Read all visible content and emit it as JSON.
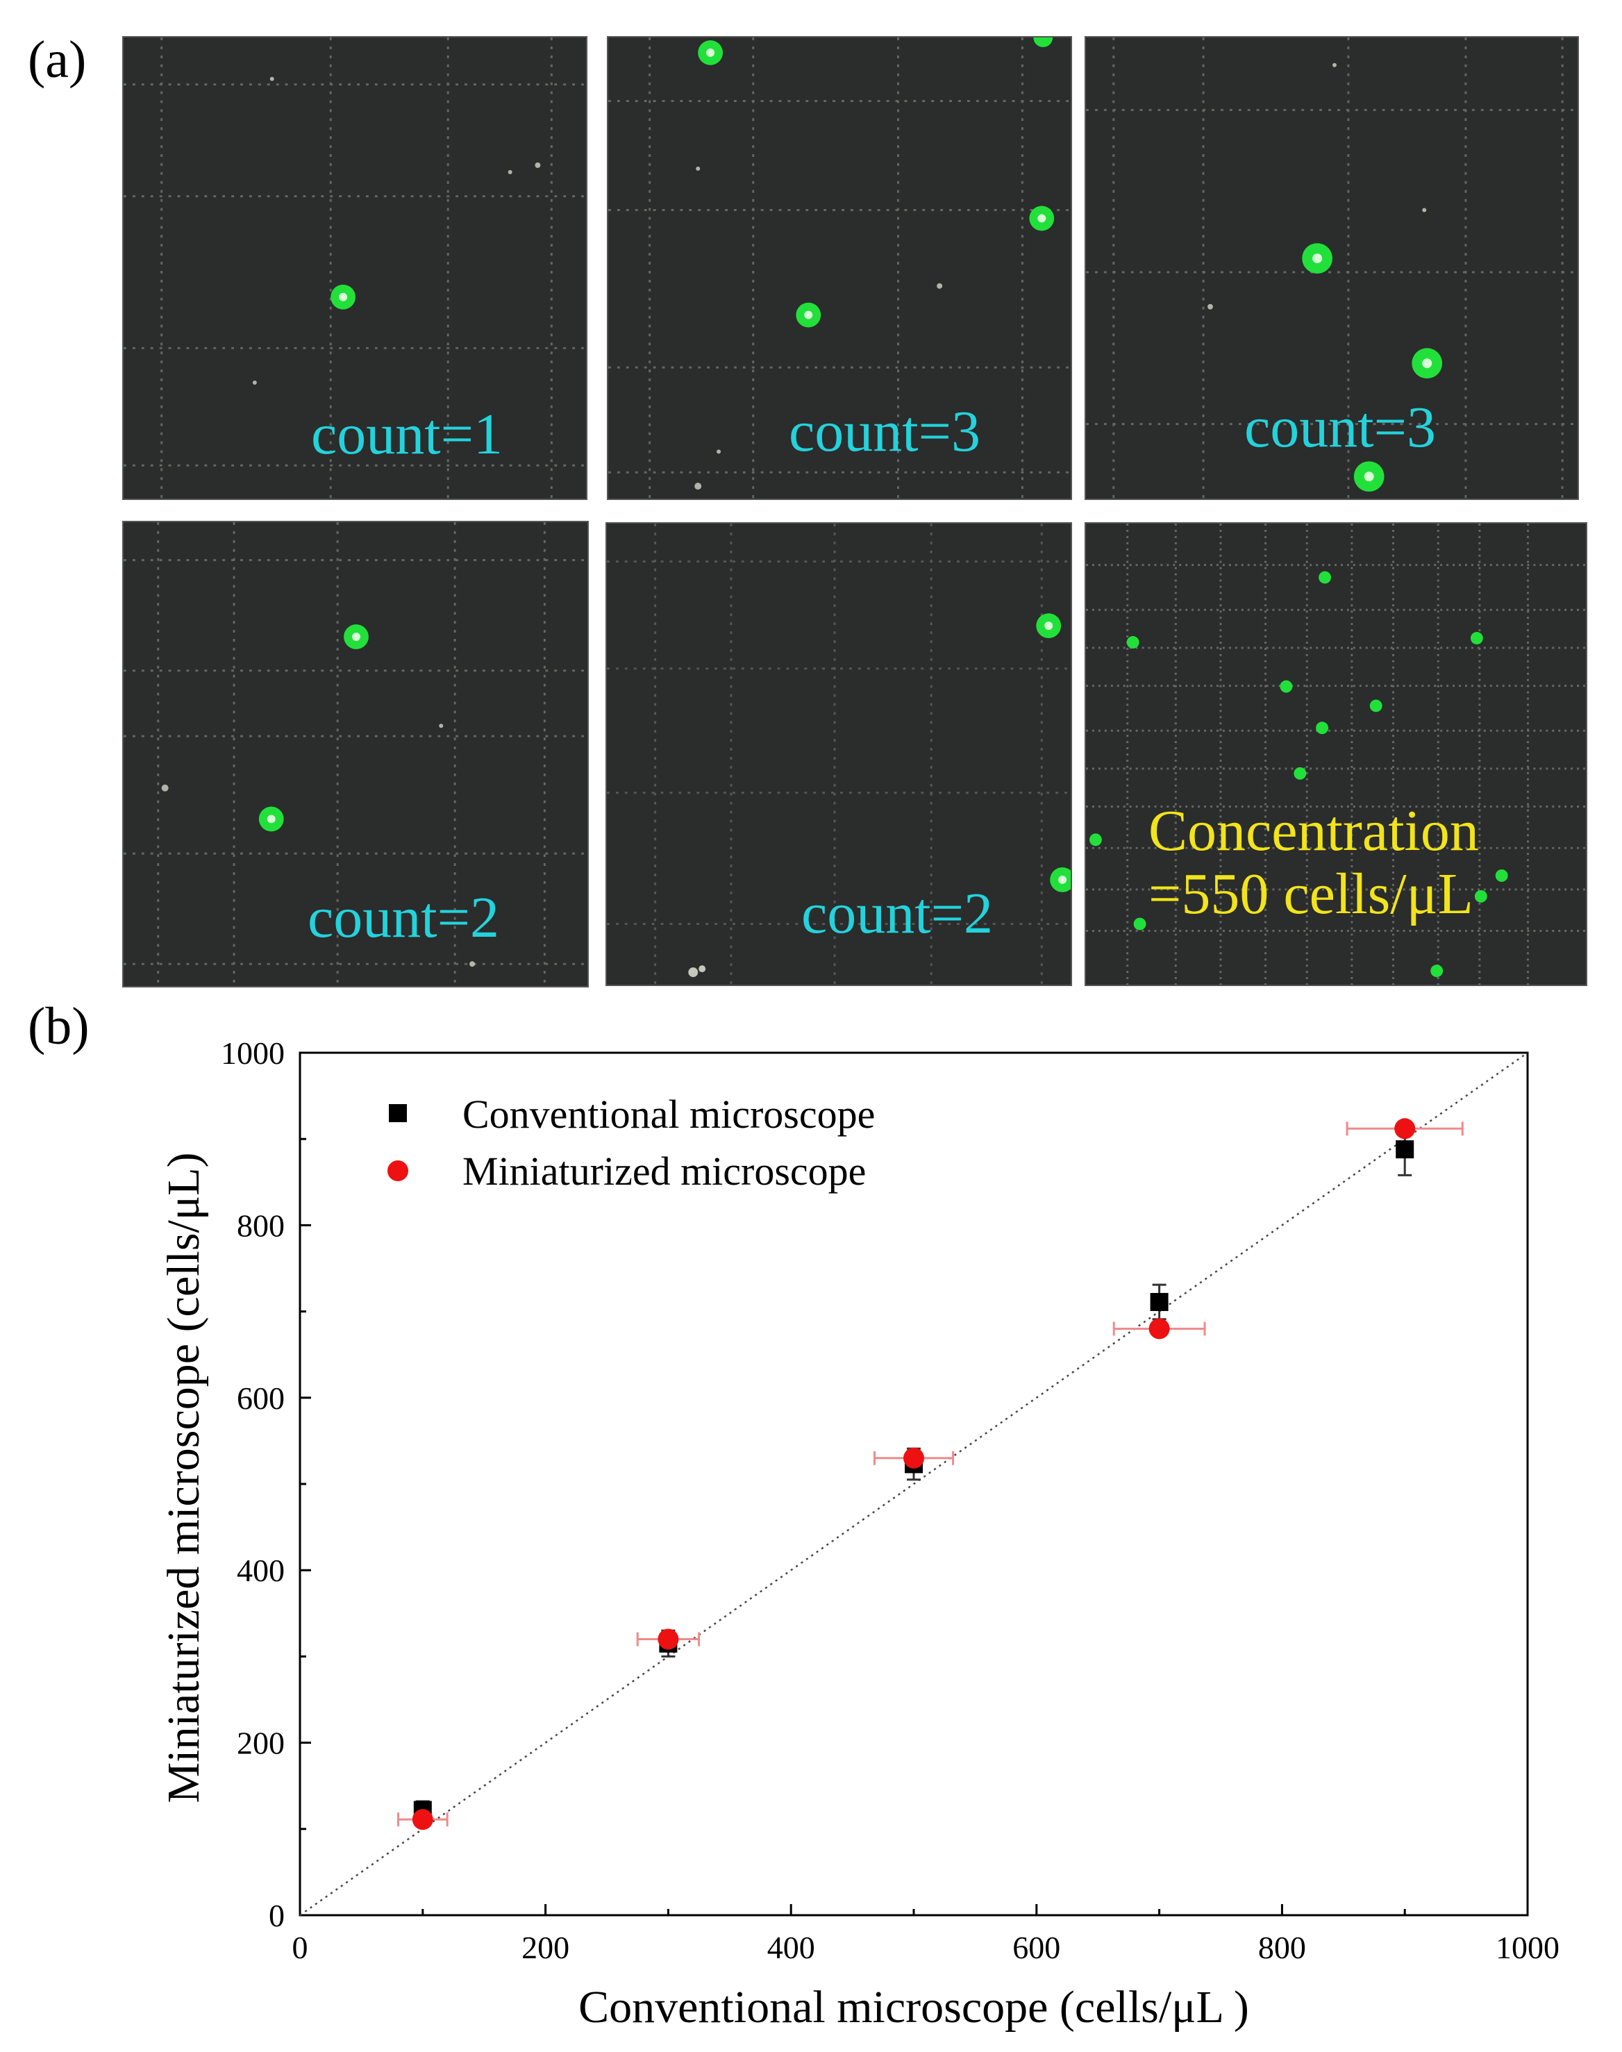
{
  "panel_a": {
    "label": "(a)",
    "tiles": [
      {
        "name": "tile-1",
        "caption": "count=1"
      },
      {
        "name": "tile-2",
        "caption": "count=3"
      },
      {
        "name": "tile-3",
        "caption": "count=3"
      },
      {
        "name": "tile-4",
        "caption": "count=2"
      },
      {
        "name": "tile-5",
        "caption": "count=2"
      }
    ],
    "concentration": {
      "line1": "Concentration",
      "line2": "=550 cells/μL"
    }
  },
  "panel_b": {
    "label": "(b)"
  },
  "colors": {
    "cell_green": "#22e03a",
    "count_cyan": "#23d3dc",
    "conc_yellow": "#f2e41a",
    "conventional": "#000000",
    "miniaturized": "#ee1111"
  },
  "chart_data": {
    "type": "scatter",
    "title": "",
    "xlabel": "Conventional microscope (cells/μL )",
    "ylabel": "Miniaturized microscope (cells/μL)",
    "xlim": [
      0,
      1000
    ],
    "ylim": [
      0,
      1000
    ],
    "xticks": [
      0,
      200,
      400,
      600,
      800,
      1000
    ],
    "yticks": [
      0,
      200,
      400,
      600,
      800,
      1000
    ],
    "grid": false,
    "legend_position": "top-left",
    "reference_line": {
      "style": "dotted",
      "from": [
        0,
        0
      ],
      "to": [
        1000,
        1000
      ]
    },
    "series": [
      {
        "name": "Conventional microscope",
        "marker": "square",
        "x": [
          100,
          300,
          500,
          700,
          900
        ],
        "y": [
          122,
          315,
          523,
          711,
          888
        ],
        "yerr": [
          10,
          15,
          18,
          20,
          30
        ],
        "xerr": [
          0,
          0,
          0,
          0,
          0
        ]
      },
      {
        "name": "Miniaturized microscope",
        "marker": "circle",
        "x": [
          100,
          300,
          500,
          700,
          900
        ],
        "y": [
          111,
          320,
          530,
          680,
          912
        ],
        "xerr": [
          20,
          25,
          32,
          37,
          47
        ],
        "yerr": [
          0,
          0,
          0,
          0,
          0
        ]
      }
    ]
  }
}
